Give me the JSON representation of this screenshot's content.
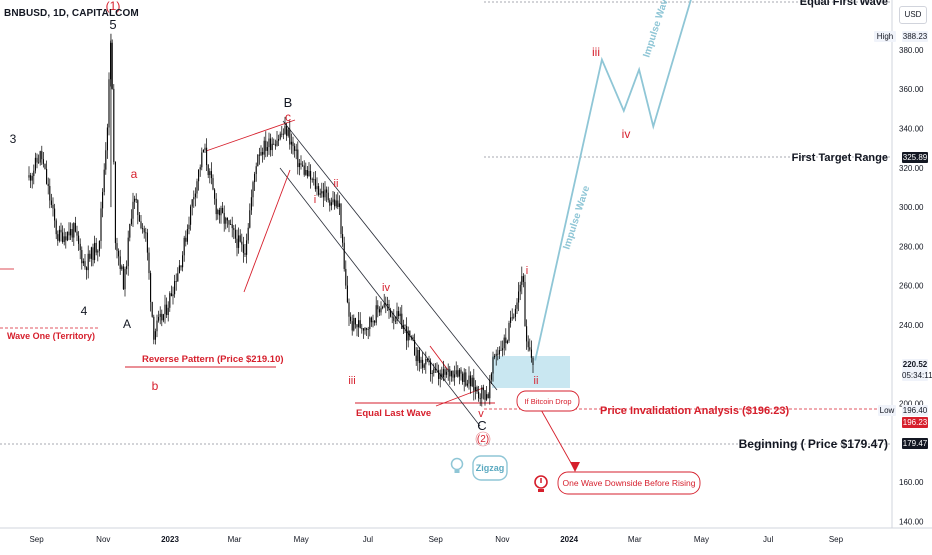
{
  "header": {
    "symbol": "BNBUSD, 1D, CAPITALCOM",
    "currency": "USD"
  },
  "price_axis": {
    "ticks": [
      "380.00",
      "360.00",
      "340.00",
      "320.00",
      "300.00",
      "280.00",
      "260.00",
      "240.00",
      "200.00",
      "160.00",
      "140.00"
    ],
    "high_label": "High",
    "high_value": "388.23",
    "first_target_value": "325.89",
    "current_price": "220.52",
    "countdown": "05:34:11",
    "low_label": "Low",
    "low_value": "196.40",
    "invalidation_value": "196.23",
    "beginning_value": "179.47"
  },
  "time_axis": {
    "ticks": [
      "Sep",
      "Nov",
      "2023",
      "Mar",
      "May",
      "Jul",
      "Sep",
      "Nov",
      "2024",
      "Mar",
      "May",
      "Jul",
      "Sep"
    ]
  },
  "annotations": {
    "equal_first_wave": "Equal First Wave",
    "first_target_range": "First Target Range",
    "price_invalidation": "Price Invalidation Analysis ($196.23)",
    "beginning": "Beginning ( Price $179.47)",
    "if_bitcoin_drop": "If Bitcoin Drop",
    "one_wave_downside": "One Wave Downside Before Rising",
    "zigzag": "Zigzag",
    "equal_last_wave": "Equal Last Wave",
    "reverse_pattern": "Reverse Pattern (Price $219.10)",
    "wave_one_territory": "Wave One (Territory)",
    "impulse_wave_1": "Impulse Wave",
    "impulse_wave_2": "Impulse Wave"
  },
  "wave_labels": {
    "w1": "(1)",
    "w5": "5",
    "w3": "3",
    "w4": "4",
    "wA": "A",
    "wa": "a",
    "wb": "b",
    "wB": "B",
    "wc": "c",
    "wC": "C",
    "w2c": "(2)",
    "s_i": "i",
    "s_ii": "ii",
    "s_iii": "iii",
    "s_iv": "iv",
    "s_v": "v",
    "n_i": "i",
    "n_ii": "ii",
    "n_iii": "iii",
    "n_iv": "iv"
  },
  "colors": {
    "candle": "#000000",
    "bear_red": "#d61f2c",
    "impulse_blue": "#8fc6d6",
    "zone_blue": "#bfe3ee",
    "grid": "#e5e7ec"
  },
  "chart_data": {
    "type": "candlestick",
    "title": "BNBUSD, 1D, CAPITALCOM",
    "x_range": [
      "2022-08",
      "2024-09"
    ],
    "ylim": [
      140,
      395
    ],
    "key_levels": {
      "high": 388.23,
      "first_target": 325.89,
      "current": 220.52,
      "low": 196.4,
      "invalidation": 196.23,
      "beginning": 179.47,
      "reverse_pattern": 219.1
    },
    "close_path": [
      {
        "x": "2022-08-25",
        "y": 315
      },
      {
        "x": "2022-09-05",
        "y": 327
      },
      {
        "x": "2022-09-20",
        "y": 285
      },
      {
        "x": "2022-10-05",
        "y": 288
      },
      {
        "x": "2022-10-15",
        "y": 270
      },
      {
        "x": "2022-10-28",
        "y": 282
      },
      {
        "x": "2022-11-05",
        "y": 345
      },
      {
        "x": "2022-11-08",
        "y": 388
      },
      {
        "x": "2022-11-12",
        "y": 285
      },
      {
        "x": "2022-11-20",
        "y": 260
      },
      {
        "x": "2022-11-28",
        "y": 305
      },
      {
        "x": "2022-12-10",
        "y": 285
      },
      {
        "x": "2022-12-17",
        "y": 236
      },
      {
        "x": "2022-12-28",
        "y": 247
      },
      {
        "x": "2023-01-12",
        "y": 275
      },
      {
        "x": "2023-01-22",
        "y": 305
      },
      {
        "x": "2023-02-01",
        "y": 330
      },
      {
        "x": "2023-02-12",
        "y": 300
      },
      {
        "x": "2023-03-10",
        "y": 277
      },
      {
        "x": "2023-03-22",
        "y": 328
      },
      {
        "x": "2023-04-18",
        "y": 339
      },
      {
        "x": "2023-04-28",
        "y": 323
      },
      {
        "x": "2023-05-15",
        "y": 310
      },
      {
        "x": "2023-06-05",
        "y": 300
      },
      {
        "x": "2023-06-10",
        "y": 262
      },
      {
        "x": "2023-06-15",
        "y": 240
      },
      {
        "x": "2023-07-01",
        "y": 240
      },
      {
        "x": "2023-07-14",
        "y": 251
      },
      {
        "x": "2023-08-01",
        "y": 241
      },
      {
        "x": "2023-08-17",
        "y": 222
      },
      {
        "x": "2023-09-05",
        "y": 213
      },
      {
        "x": "2023-09-20",
        "y": 218
      },
      {
        "x": "2023-10-10",
        "y": 206
      },
      {
        "x": "2023-10-19",
        "y": 205
      },
      {
        "x": "2023-10-25",
        "y": 225
      },
      {
        "x": "2023-11-05",
        "y": 233
      },
      {
        "x": "2023-11-20",
        "y": 268
      },
      {
        "x": "2023-11-22",
        "y": 230
      },
      {
        "x": "2023-11-30",
        "y": 220.5
      }
    ],
    "projection": [
      {
        "x": "2023-12-01",
        "y": 222
      },
      {
        "x": "2024-01-31",
        "y": 375
      },
      {
        "x": "2024-02-20",
        "y": 349
      },
      {
        "x": "2024-03-05",
        "y": 370
      },
      {
        "x": "2024-03-18",
        "y": 341
      },
      {
        "x": "2024-05-15",
        "y": 450
      }
    ]
  }
}
